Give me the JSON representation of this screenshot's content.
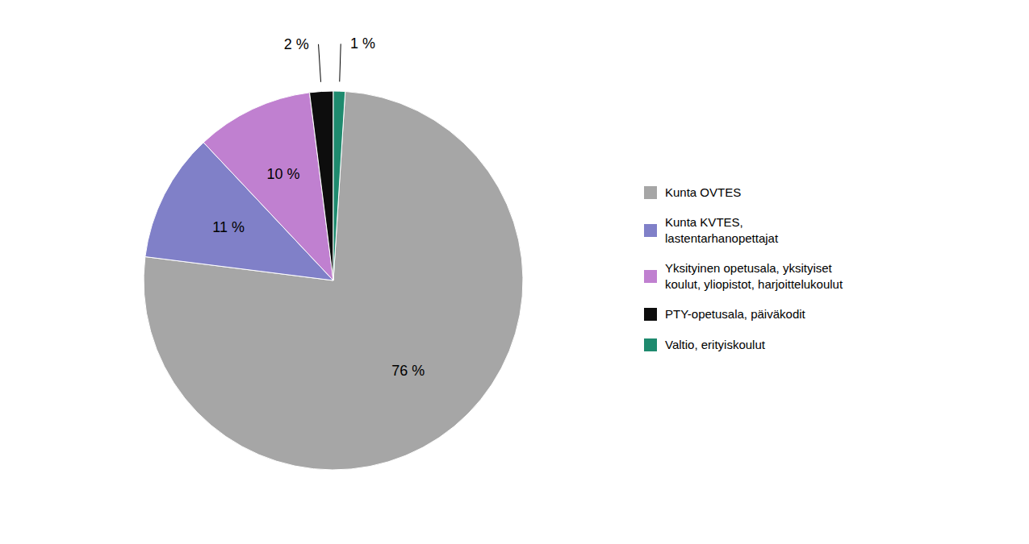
{
  "chart_data": {
    "type": "pie",
    "categories": [
      "Kunta OVTES",
      "Kunta KVTES,\nlastentarhanopettajat",
      "Yksityinen opetusala, yksityiset\nkoulut, yliopistot, harjoittelukoulut",
      "PTY-opetusala, päiväkodit",
      "Valtio, erityiskoulut"
    ],
    "values": [
      76,
      11,
      10,
      2,
      1
    ],
    "value_labels": [
      "76 %",
      "11 %",
      "10 %",
      "2 %",
      "1 %"
    ],
    "colors": [
      "#a6a6a6",
      "#8080c8",
      "#c080d0",
      "#0d0d0d",
      "#1e8a6e"
    ],
    "data_labels": true,
    "legend": "right"
  }
}
